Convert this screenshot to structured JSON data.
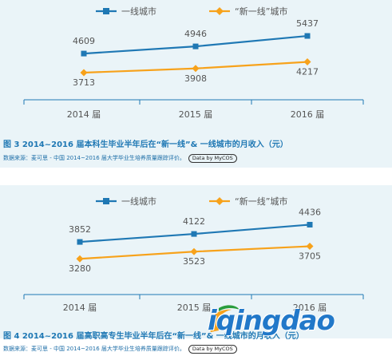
{
  "charts": [
    {
      "caption": "图 3  2014~2016 届本科生毕业半年后在“新一线”& 一线城市的月收入（元）",
      "source": "数据来源：麦可思 - 中国 2014~2016 届大学毕业生培养质量跟踪评价。",
      "badge": "Data by MyCOS"
    },
    {
      "caption": "图 4  2014~2016 届高职高专生毕业半年后在“新一线”& 一线城市的月收入（元）",
      "source": "数据来源：麦可思 - 中国 2014~2016 届大学毕业生培养质量跟踪评价。",
      "badge": "Data by MyCOS"
    }
  ],
  "chart_data": [
    {
      "type": "line",
      "categories": [
        "2014 届",
        "2015 届",
        "2016 届"
      ],
      "series": [
        {
          "name": "一线城市",
          "values": [
            4609,
            4946,
            5437
          ],
          "color": "#1f78b4"
        },
        {
          "name": "“新一线”城市",
          "values": [
            3713,
            3908,
            4217
          ],
          "color": "#f7a21b"
        }
      ],
      "ylim": [
        3000,
        6000
      ],
      "legend": "top",
      "grid": false,
      "title": "图 3  2014~2016 届本科生毕业半年后在“新一线”& 一线城市的月收入（元）"
    },
    {
      "type": "line",
      "categories": [
        "2014 届",
        "2015 届",
        "2016 届"
      ],
      "series": [
        {
          "name": "一线城市",
          "values": [
            3852,
            4122,
            4436
          ],
          "color": "#1f78b4"
        },
        {
          "name": "“新一线”城市",
          "values": [
            3280,
            3523,
            3705
          ],
          "color": "#f7a21b"
        }
      ],
      "ylim": [
        2800,
        4800
      ],
      "legend": "top",
      "grid": false,
      "title": "图 4  2014~2016 届高职高专生毕业半年后在“新一线”& 一线城市的月收入（元）"
    }
  ],
  "watermark": {
    "text": "iqingdao"
  }
}
